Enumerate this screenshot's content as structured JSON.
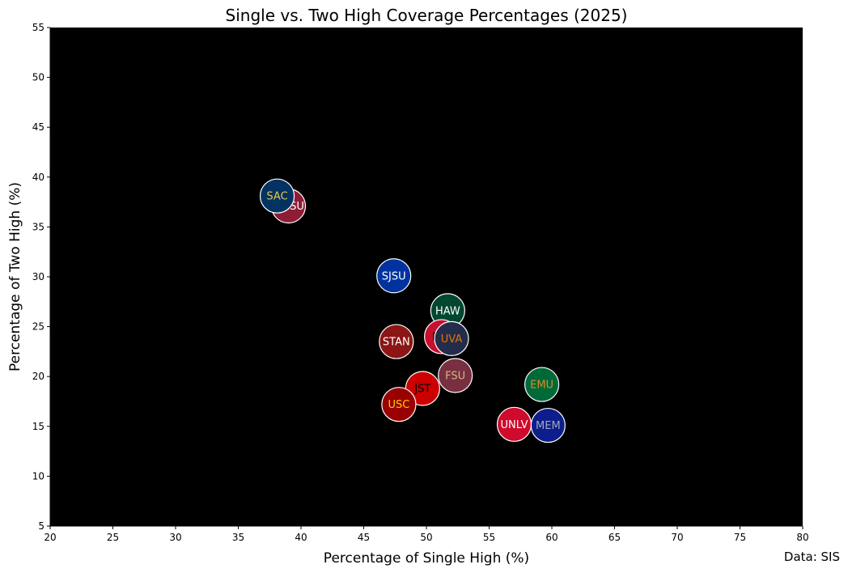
{
  "chart_data": {
    "type": "scatter",
    "title": "Single vs. Two High Coverage Percentages (2025)",
    "xlabel": "Percentage of Single High (%)",
    "ylabel": "Percentage of Two High (%)",
    "xlim": [
      20,
      80
    ],
    "ylim": [
      5,
      55
    ],
    "xticks": [
      20,
      25,
      30,
      35,
      40,
      45,
      50,
      55,
      60,
      65,
      70,
      75,
      80
    ],
    "yticks": [
      5,
      10,
      15,
      20,
      25,
      30,
      35,
      40,
      45,
      50,
      55
    ],
    "grid": false,
    "background": "#000000",
    "source": "Data: SIS",
    "points": [
      {
        "label": "NMSU",
        "x": 39.0,
        "y": 37.1,
        "fill": "#8c1d35",
        "text": "#ffffff"
      },
      {
        "label": "SAC",
        "x": 38.1,
        "y": 38.1,
        "fill": "#043363",
        "text": "#e8c547"
      },
      {
        "label": "SJSU",
        "x": 47.4,
        "y": 30.1,
        "fill": "#0033a0",
        "text": "#ffffff"
      },
      {
        "label": "HAW",
        "x": 51.7,
        "y": 26.6,
        "fill": "#024731",
        "text": "#ffffff"
      },
      {
        "label": "NIU",
        "x": 51.2,
        "y": 24.0,
        "fill": "#c8102e",
        "text": "#000000"
      },
      {
        "label": "UVA",
        "x": 52.0,
        "y": 23.8,
        "fill": "#232d4b",
        "text": "#e57200"
      },
      {
        "label": "STAN",
        "x": 47.6,
        "y": 23.5,
        "fill": "#8c1515",
        "text": "#ffffff"
      },
      {
        "label": "FSU",
        "x": 52.3,
        "y": 20.1,
        "fill": "#782f40",
        "text": "#ceb888"
      },
      {
        "label": "EMU",
        "x": 59.2,
        "y": 19.2,
        "fill": "#006938",
        "text": "#e08a1e"
      },
      {
        "label": "JST",
        "x": 49.7,
        "y": 18.8,
        "fill": "#cc0000",
        "text": "#000000"
      },
      {
        "label": "USC",
        "x": 47.8,
        "y": 17.2,
        "fill": "#990000",
        "text": "#ffcc00"
      },
      {
        "label": "UNLV",
        "x": 57.0,
        "y": 15.2,
        "fill": "#cf0a2c",
        "text": "#ffffff"
      },
      {
        "label": "MEM",
        "x": 59.7,
        "y": 15.1,
        "fill": "#0d1e8c",
        "text": "#a0a8b8"
      }
    ]
  }
}
